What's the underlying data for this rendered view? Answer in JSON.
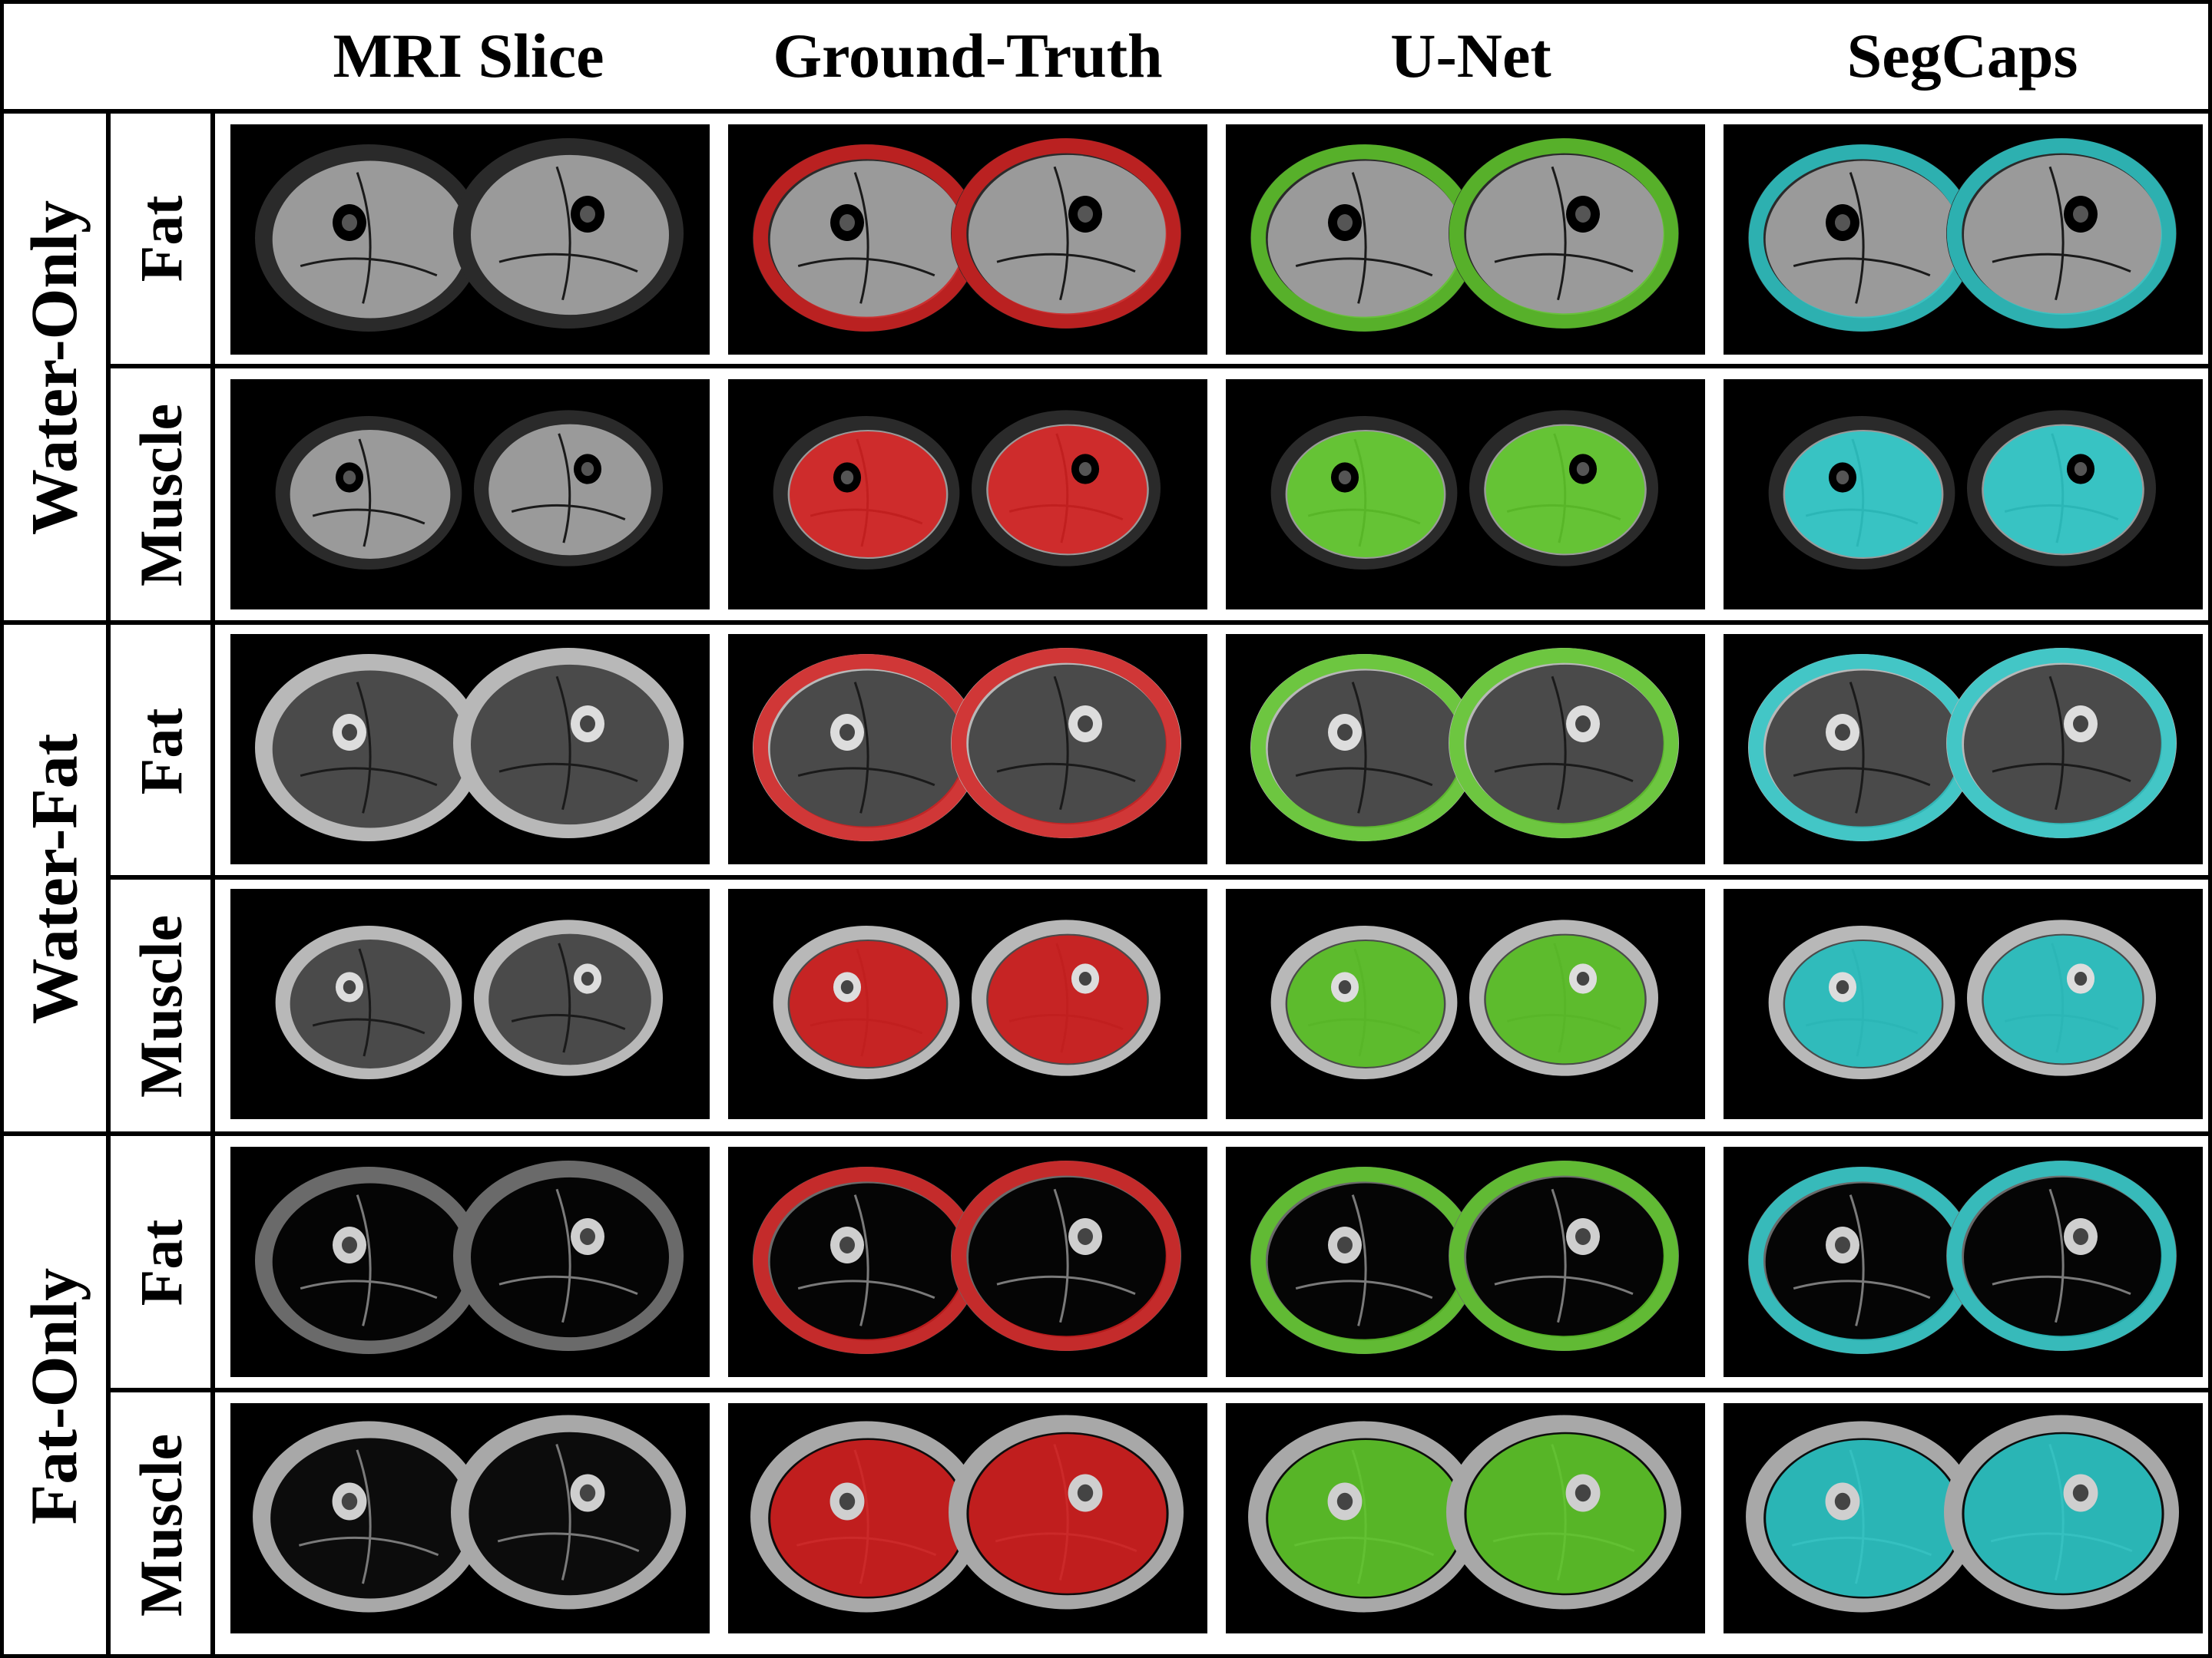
{
  "columns": [
    "MRI Slice",
    "Ground-Truth",
    "U-Net",
    "SegCaps"
  ],
  "groups": [
    "Water-Only",
    "Water-Fat",
    "Fat-Only"
  ],
  "subrows": [
    "Fat",
    "Muscle",
    "Fat",
    "Muscle",
    "Fat",
    "Muscle"
  ],
  "colors": {
    "ground_truth": "#d42020",
    "unet": "#5fc82a",
    "segcaps": "#2ec8c8",
    "background": "#000000",
    "border": "#000000"
  },
  "row_styles": [
    {
      "group": "Water-Only",
      "target": "Fat"
    },
    {
      "group": "Water-Only",
      "target": "Muscle"
    },
    {
      "group": "Water-Fat",
      "target": "Fat"
    },
    {
      "group": "Water-Fat",
      "target": "Muscle"
    },
    {
      "group": "Fat-Only",
      "target": "Fat"
    },
    {
      "group": "Fat-Only",
      "target": "Muscle"
    }
  ]
}
